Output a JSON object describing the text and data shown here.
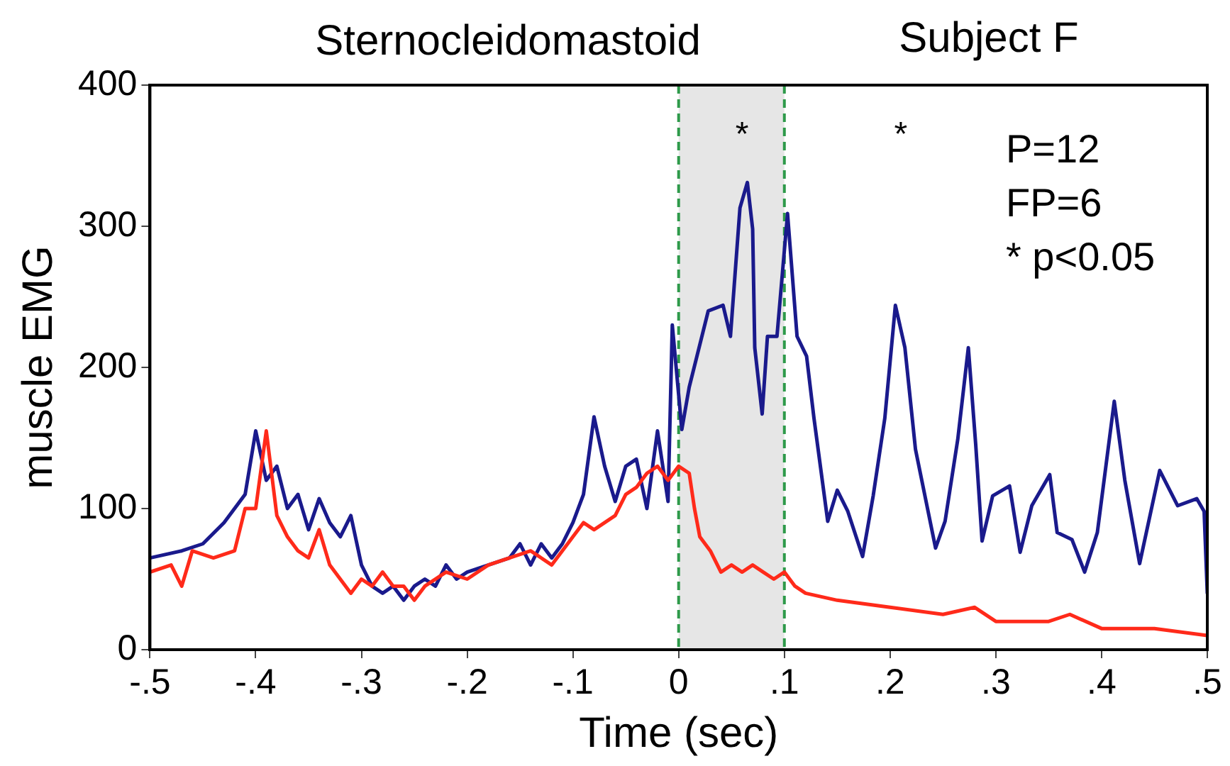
{
  "chart_data": {
    "type": "line",
    "title": "Sternocleidomastoid",
    "subtitle": "Subject F",
    "xlabel": "Time (sec)",
    "ylabel": "muscle EMG",
    "xlim": [
      -0.5,
      0.5
    ],
    "xticks": [
      {
        "value": -0.5,
        "label": "-.5"
      },
      {
        "value": -0.4,
        "label": "-.4"
      },
      {
        "value": -0.3,
        "label": "-.3"
      },
      {
        "value": -0.2,
        "label": "-.2"
      },
      {
        "value": -0.1,
        "label": "-.1"
      },
      0,
      {
        "value": 0.1,
        "label": ".1"
      },
      {
        "value": 0.2,
        "label": ".2"
      },
      {
        "value": 0.3,
        "label": ".3"
      },
      {
        "value": 0.4,
        "label": ".4"
      },
      {
        "value": 0.5,
        "label": ".5"
      }
    ],
    "ylim": [
      0,
      400
    ],
    "yticks": [
      0,
      100,
      200,
      300,
      400
    ],
    "grid": false,
    "legend": false,
    "series": [
      {
        "color": "#ff2a1a",
        "x": [
          -0.5,
          -0.48,
          -0.47,
          -0.46,
          -0.44,
          -0.42,
          -0.41,
          -0.4,
          -0.39,
          -0.38,
          -0.37,
          -0.36,
          -0.35,
          -0.34,
          -0.33,
          -0.32,
          -0.31,
          -0.3,
          -0.29,
          -0.28,
          -0.27,
          -0.26,
          -0.25,
          -0.24,
          -0.22,
          -0.2,
          -0.18,
          -0.16,
          -0.14,
          -0.12,
          -0.1,
          -0.09,
          -0.08,
          -0.06,
          -0.05,
          -0.04,
          -0.03,
          -0.02,
          -0.01,
          0,
          0.01,
          0.015,
          0.02,
          0.03,
          0.04,
          0.05,
          0.06,
          0.07,
          0.08,
          0.09,
          0.1,
          0.11,
          0.12,
          0.15,
          0.2,
          0.25,
          0.28,
          0.3,
          0.33,
          0.35,
          0.37,
          0.4,
          0.45,
          0.5
        ],
        "values": [
          55,
          60,
          45,
          70,
          65,
          70,
          100,
          100,
          155,
          95,
          80,
          70,
          65,
          85,
          60,
          50,
          40,
          50,
          45,
          55,
          45,
          45,
          35,
          45,
          55,
          50,
          60,
          65,
          70,
          60,
          80,
          90,
          85,
          95,
          110,
          115,
          125,
          130,
          120,
          130,
          125,
          100,
          80,
          70,
          55,
          60,
          55,
          60,
          55,
          50,
          55,
          45,
          40,
          35,
          30,
          25,
          30,
          20,
          20,
          20,
          25,
          15,
          15,
          10
        ]
      },
      {
        "color": "#1a1a8c",
        "x": [
          -0.5,
          -0.47,
          -0.45,
          -0.43,
          -0.41,
          -0.4,
          -0.39,
          -0.38,
          -0.37,
          -0.36,
          -0.35,
          -0.34,
          -0.33,
          -0.32,
          -0.31,
          -0.3,
          -0.29,
          -0.28,
          -0.27,
          -0.26,
          -0.25,
          -0.24,
          -0.23,
          -0.22,
          -0.21,
          -0.2,
          -0.18,
          -0.16,
          -0.15,
          -0.14,
          -0.13,
          -0.12,
          -0.11,
          -0.1,
          -0.09,
          -0.08,
          -0.07,
          -0.06,
          -0.05,
          -0.04,
          -0.03,
          -0.02,
          -0.01,
          -0.006,
          0.003,
          0.01,
          0.028,
          0.042,
          0.049,
          0.058,
          0.065,
          0.07,
          0.072,
          0.079,
          0.084,
          0.093,
          0.103,
          0.112,
          0.121,
          0.128,
          0.141,
          0.15,
          0.16,
          0.174,
          0.184,
          0.195,
          0.205,
          0.214,
          0.224,
          0.243,
          0.252,
          0.264,
          0.274,
          0.281,
          0.287,
          0.297,
          0.313,
          0.323,
          0.334,
          0.351,
          0.358,
          0.372,
          0.384,
          0.396,
          0.412,
          0.422,
          0.436,
          0.455,
          0.472,
          0.49,
          0.497,
          0.5
        ],
        "values": [
          65,
          70,
          75,
          90,
          110,
          155,
          120,
          130,
          100,
          110,
          85,
          107,
          90,
          80,
          95,
          60,
          45,
          40,
          45,
          35,
          45,
          50,
          45,
          60,
          50,
          55,
          60,
          65,
          75,
          60,
          75,
          65,
          75,
          90,
          110,
          165,
          130,
          105,
          130,
          135,
          100,
          155,
          105,
          230,
          156,
          186,
          240,
          244,
          222,
          313,
          331,
          298,
          214,
          167,
          222,
          222,
          309,
          222,
          208,
          164,
          91,
          113,
          98,
          66,
          109,
          164,
          244,
          214,
          142,
          72,
          91,
          149,
          214,
          145,
          77,
          109,
          116,
          69,
          102,
          124,
          83,
          78,
          55,
          83,
          176,
          120,
          61,
          127,
          102,
          107,
          98,
          40
        ]
      }
    ],
    "bands": [
      {
        "axis": "x",
        "from": 0,
        "to": 0.1,
        "color": "#e6e6e6"
      }
    ],
    "ref_lines": [
      {
        "axis": "x",
        "value": 0,
        "color": "#2e9a4a",
        "line_style": "dashed"
      },
      {
        "axis": "x",
        "value": 0.1,
        "color": "#2e9a4a",
        "line_style": "dashed"
      }
    ],
    "annotations": [
      "*",
      "*",
      "P=12",
      "FP=6",
      "* p<0.05"
    ]
  }
}
